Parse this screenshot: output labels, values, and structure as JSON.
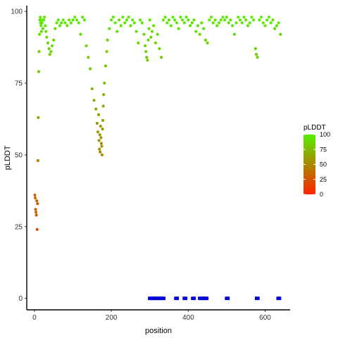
{
  "chart_data": {
    "type": "scatter",
    "title": "",
    "xlabel": "position",
    "ylabel": "pLDDT",
    "xlim": [
      -20,
      665
    ],
    "ylim": [
      -4,
      102
    ],
    "x_ticks": [
      0,
      200,
      400,
      600
    ],
    "y_ticks": [
      0,
      25,
      50,
      75,
      100
    ],
    "grid": false,
    "color_scale": {
      "name": "pLDDT",
      "low_color": "#ff2200",
      "high_color": "#55ee00",
      "ticks": [
        0,
        25,
        50,
        75,
        100
      ]
    },
    "mark_color_zero": "#0000dd",
    "series": [
      {
        "marks": "points",
        "x": [
          1,
          2,
          3,
          4,
          5,
          6,
          7,
          8,
          9,
          10,
          11,
          12,
          13,
          14,
          15,
          16,
          17,
          18,
          19,
          20,
          22,
          24,
          26,
          28,
          30,
          32,
          35,
          38,
          40,
          43,
          46,
          50,
          54,
          58,
          62,
          66,
          70,
          75,
          80,
          85,
          90,
          95,
          100,
          105,
          110,
          115,
          120,
          125,
          130,
          135,
          140,
          145,
          150,
          155,
          160,
          163,
          165,
          167,
          168,
          169,
          170,
          171,
          172,
          173,
          174,
          175,
          176,
          177,
          178,
          179,
          180,
          182,
          185,
          188,
          190,
          195,
          200,
          205,
          210,
          215,
          220,
          225,
          230,
          235,
          240,
          245,
          250,
          255,
          260,
          265,
          270,
          275,
          280,
          285,
          288,
          290,
          292,
          294,
          296,
          298,
          300,
          303,
          306,
          310,
          315,
          320,
          325,
          330,
          335,
          340,
          345,
          350,
          355,
          360,
          365,
          370,
          375,
          380,
          385,
          390,
          395,
          400,
          405,
          410,
          415,
          420,
          425,
          430,
          435,
          440,
          445,
          450,
          455,
          460,
          465,
          470,
          475,
          480,
          485,
          490,
          495,
          500,
          505,
          510,
          515,
          520,
          525,
          530,
          535,
          540,
          545,
          550,
          555,
          560,
          565,
          570,
          575,
          577,
          580,
          585,
          590,
          595,
          600,
          605,
          610,
          615,
          620,
          625,
          630,
          635,
          640
        ],
        "y": [
          36,
          35,
          31,
          30,
          29,
          34,
          24,
          33,
          48,
          63,
          79,
          86,
          92,
          97,
          98,
          96,
          95,
          93,
          97,
          96,
          94,
          97,
          98,
          95,
          93,
          91,
          89,
          87,
          85,
          86,
          88,
          90,
          94,
          96,
          97,
          95,
          96,
          97,
          96,
          95,
          97,
          96,
          97,
          98,
          97,
          96,
          92,
          98,
          97,
          88,
          84,
          80,
          73,
          69,
          66,
          61,
          58,
          64,
          55,
          52,
          57,
          51,
          60,
          56,
          54,
          53,
          50,
          59,
          62,
          67,
          71,
          75,
          81,
          86,
          90,
          94,
          97,
          98,
          96,
          93,
          97,
          95,
          98,
          96,
          97,
          98,
          95,
          97,
          96,
          93,
          89,
          97,
          96,
          92,
          88,
          86,
          84,
          83,
          90,
          94,
          97,
          91,
          93,
          95,
          89,
          92,
          87,
          84,
          97,
          98,
          96,
          97,
          95,
          98,
          97,
          96,
          94,
          98,
          97,
          96,
          98,
          97,
          95,
          96,
          97,
          93,
          95,
          92,
          96,
          94,
          90,
          89,
          97,
          98,
          96,
          97,
          95,
          96,
          97,
          98,
          97,
          98,
          96,
          97,
          95,
          92,
          96,
          98,
          97,
          96,
          98,
          97,
          95,
          96,
          98,
          97,
          87,
          85,
          84,
          97,
          98,
          96,
          95,
          97,
          98,
          96,
          97,
          94,
          95,
          96,
          92
        ]
      },
      {
        "marks": "zero-marks",
        "x": [
          300,
          303,
          306,
          309,
          312,
          315,
          318,
          321,
          324,
          327,
          330,
          333,
          336,
          368,
          371,
          390,
          393,
          412,
          415,
          430,
          433,
          436,
          439,
          442,
          445,
          448,
          500,
          503,
          578,
          581,
          634,
          637
        ],
        "y": [
          0,
          0,
          0,
          0,
          0,
          0,
          0,
          0,
          0,
          0,
          0,
          0,
          0,
          0,
          0,
          0,
          0,
          0,
          0,
          0,
          0,
          0,
          0,
          0,
          0,
          0,
          0,
          0,
          0,
          0,
          0,
          0
        ]
      }
    ]
  }
}
